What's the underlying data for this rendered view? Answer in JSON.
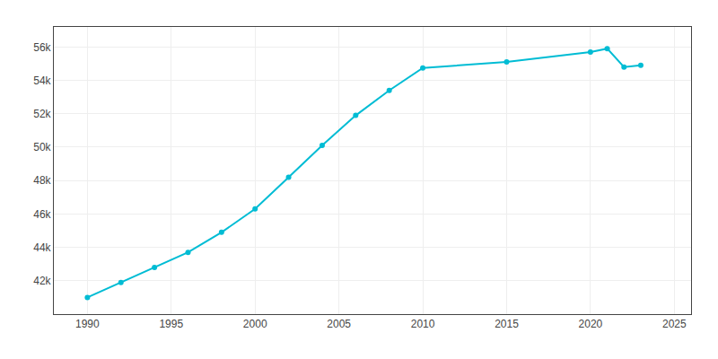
{
  "chart_data": {
    "type": "line",
    "x": [
      1990,
      1992,
      1994,
      1996,
      1998,
      2000,
      2002,
      2004,
      2006,
      2008,
      2010,
      2015,
      2020,
      2021,
      2022,
      2023
    ],
    "values": [
      41000,
      41900,
      42800,
      43700,
      44900,
      46300,
      48200,
      50100,
      51900,
      53400,
      54740,
      55100,
      55700,
      55900,
      54800,
      54900
    ],
    "color": "#00BCD4",
    "marker": "circle",
    "xlim": [
      1988,
      2026
    ],
    "ylim": [
      40000,
      57200
    ],
    "xticks": [
      1990,
      1995,
      2000,
      2005,
      2010,
      2015,
      2020,
      2025
    ],
    "yticks": [
      {
        "value": 42000,
        "label": "42k"
      },
      {
        "value": 44000,
        "label": "44k"
      },
      {
        "value": 46000,
        "label": "46k"
      },
      {
        "value": 48000,
        "label": "48k"
      },
      {
        "value": 50000,
        "label": "50k"
      },
      {
        "value": 52000,
        "label": "52k"
      },
      {
        "value": 54000,
        "label": "54k"
      },
      {
        "value": 56000,
        "label": "56k"
      }
    ],
    "grid": true
  }
}
